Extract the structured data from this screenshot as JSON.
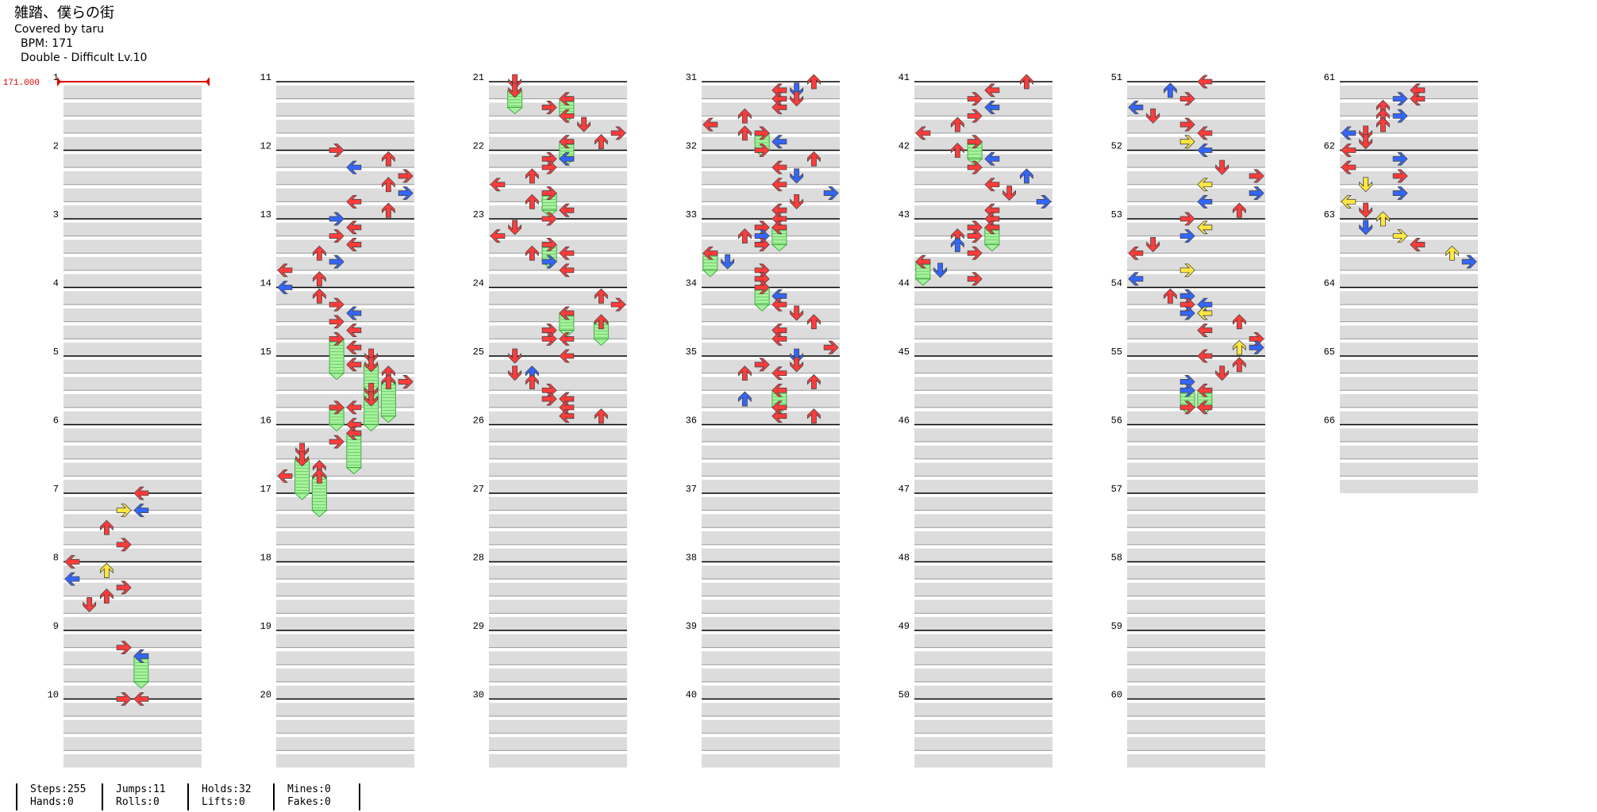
{
  "song": {
    "title": "雑踏、僕らの街",
    "artist": "Covered by taru",
    "bpm": "BPM: 171",
    "difficulty": "Double - Difficult Lv.10"
  },
  "bpm_marker": "171.000",
  "measure_count": 66,
  "stats": [
    {
      "line1": "Steps:255",
      "line2": "Hands:0"
    },
    {
      "line1": "Jumps:11",
      "line2": "Rolls:0"
    },
    {
      "line1": "Holds:32",
      "line2": "Lifts:0"
    },
    {
      "line1": "Mines:0",
      "line2": "Fakes:0"
    }
  ],
  "colors": {
    "lane_fill": "#dcdcdc",
    "beat_line": "#999999",
    "measure_line": "#000000",
    "arrow_red": "#ff3b3b",
    "arrow_blue": "#3366ff",
    "arrow_yellow": "#ffe640",
    "hold_body": "#a6f29c",
    "hold_stroke": "#3faa3f",
    "bpm_marker": "#dd0000"
  },
  "notes": [
    {
      "m": 7,
      "b": 0,
      "l": 4,
      "c": "r"
    },
    {
      "m": 7,
      "b": 1,
      "l": 3,
      "c": "y"
    },
    {
      "m": 7,
      "b": 1,
      "l": 4,
      "c": "b"
    },
    {
      "m": 7,
      "b": 2,
      "l": 2,
      "c": "r"
    },
    {
      "m": 7,
      "b": 3,
      "l": 3,
      "c": "r"
    },
    {
      "m": 8,
      "b": 0,
      "l": 0,
      "c": "r"
    },
    {
      "m": 8,
      "b": 0.5,
      "l": 2,
      "c": "y"
    },
    {
      "m": 8,
      "b": 1,
      "l": 0,
      "c": "b"
    },
    {
      "m": 8,
      "b": 1.5,
      "l": 3,
      "c": "r"
    },
    {
      "m": 8,
      "b": 2,
      "l": 2,
      "c": "r"
    },
    {
      "m": 8,
      "b": 2.5,
      "l": 1,
      "c": "r"
    },
    {
      "m": 9,
      "b": 1,
      "l": 3,
      "c": "r"
    },
    {
      "m": 9,
      "b": 1.5,
      "l": 4,
      "c": "b",
      "h": 1.5
    },
    {
      "m": 10,
      "b": 0,
      "l": 3,
      "c": "r"
    },
    {
      "m": 10,
      "b": 0,
      "l": 4,
      "c": "r"
    },
    {
      "m": 12,
      "b": 0,
      "l": 3,
      "c": "r"
    },
    {
      "m": 12,
      "b": 0.5,
      "l": 6,
      "c": "r"
    },
    {
      "m": 12,
      "b": 1,
      "l": 4,
      "c": "b"
    },
    {
      "m": 12,
      "b": 1.5,
      "l": 7,
      "c": "r"
    },
    {
      "m": 12,
      "b": 2,
      "l": 6,
      "c": "r"
    },
    {
      "m": 12,
      "b": 2.5,
      "l": 7,
      "c": "b"
    },
    {
      "m": 12,
      "b": 3,
      "l": 4,
      "c": "r"
    },
    {
      "m": 12,
      "b": 3.5,
      "l": 6,
      "c": "r"
    },
    {
      "m": 13,
      "b": 0,
      "l": 3,
      "c": "b"
    },
    {
      "m": 13,
      "b": 0.5,
      "l": 4,
      "c": "r"
    },
    {
      "m": 13,
      "b": 1,
      "l": 3,
      "c": "r"
    },
    {
      "m": 13,
      "b": 1.5,
      "l": 4,
      "c": "r"
    },
    {
      "m": 13,
      "b": 2,
      "l": 2,
      "c": "r"
    },
    {
      "m": 13,
      "b": 2.5,
      "l": 3,
      "c": "b"
    },
    {
      "m": 13,
      "b": 3,
      "l": 0,
      "c": "r"
    },
    {
      "m": 13,
      "b": 3.5,
      "l": 2,
      "c": "r"
    },
    {
      "m": 14,
      "b": 0,
      "l": 0,
      "c": "b"
    },
    {
      "m": 14,
      "b": 0.5,
      "l": 2,
      "c": "r"
    },
    {
      "m": 14,
      "b": 1,
      "l": 3,
      "c": "r"
    },
    {
      "m": 14,
      "b": 1.5,
      "l": 4,
      "c": "b"
    },
    {
      "m": 14,
      "b": 2,
      "l": 3,
      "c": "r"
    },
    {
      "m": 14,
      "b": 2.5,
      "l": 4,
      "c": "r"
    },
    {
      "m": 14,
      "b": 3,
      "l": 3,
      "c": "r",
      "h": 2
    },
    {
      "m": 14,
      "b": 3.5,
      "l": 4,
      "c": "r"
    },
    {
      "m": 15,
      "b": 0,
      "l": 5,
      "c": "r"
    },
    {
      "m": 15,
      "b": 0.5,
      "l": 4,
      "c": "r"
    },
    {
      "m": 15,
      "b": 0.5,
      "l": 5,
      "c": "r",
      "h": 2
    },
    {
      "m": 15,
      "b": 1,
      "l": 6,
      "c": "r"
    },
    {
      "m": 15,
      "b": 1.5,
      "l": 6,
      "c": "r",
      "h": 2
    },
    {
      "m": 15,
      "b": 1.5,
      "l": 7,
      "c": "r"
    },
    {
      "m": 15,
      "b": 2,
      "l": 5,
      "c": "r"
    },
    {
      "m": 15,
      "b": 2.5,
      "l": 5,
      "c": "r",
      "h": 1.5
    },
    {
      "m": 15,
      "b": 3,
      "l": 3,
      "c": "r",
      "h": 1
    },
    {
      "m": 15,
      "b": 3,
      "l": 4,
      "c": "r"
    },
    {
      "m": 16,
      "b": 0,
      "l": 4,
      "c": "r"
    },
    {
      "m": 16,
      "b": 0.5,
      "l": 4,
      "c": "r",
      "h": 2
    },
    {
      "m": 16,
      "b": 1,
      "l": 3,
      "c": "r"
    },
    {
      "m": 16,
      "b": 1.5,
      "l": 1,
      "c": "r"
    },
    {
      "m": 16,
      "b": 2,
      "l": 1,
      "c": "r",
      "h": 2
    },
    {
      "m": 16,
      "b": 2.5,
      "l": 2,
      "c": "r"
    },
    {
      "m": 16,
      "b": 3,
      "l": 0,
      "c": "r"
    },
    {
      "m": 16,
      "b": 3,
      "l": 2,
      "c": "r",
      "h": 2
    },
    {
      "m": 21,
      "b": 0,
      "l": 1,
      "c": "r"
    },
    {
      "m": 21,
      "b": 0.5,
      "l": 1,
      "c": "r",
      "h": 1
    },
    {
      "m": 21,
      "b": 1,
      "l": 4,
      "c": "r",
      "h": 1
    },
    {
      "m": 21,
      "b": 1.5,
      "l": 3,
      "c": "r"
    },
    {
      "m": 21,
      "b": 2,
      "l": 4,
      "c": "r"
    },
    {
      "m": 21,
      "b": 2.5,
      "l": 5,
      "c": "r"
    },
    {
      "m": 21,
      "b": 3,
      "l": 7,
      "c": "r"
    },
    {
      "m": 21,
      "b": 3.5,
      "l": 4,
      "c": "r",
      "h": 1
    },
    {
      "m": 21,
      "b": 3.5,
      "l": 6,
      "c": "r"
    },
    {
      "m": 22,
      "b": 0.5,
      "l": 3,
      "c": "r"
    },
    {
      "m": 22,
      "b": 0.5,
      "l": 4,
      "c": "b"
    },
    {
      "m": 22,
      "b": 1,
      "l": 3,
      "c": "r"
    },
    {
      "m": 22,
      "b": 1.5,
      "l": 2,
      "c": "r"
    },
    {
      "m": 22,
      "b": 2,
      "l": 0,
      "c": "r"
    },
    {
      "m": 22,
      "b": 2.5,
      "l": 3,
      "c": "r",
      "h": 1
    },
    {
      "m": 22,
      "b": 3,
      "l": 2,
      "c": "r"
    },
    {
      "m": 22,
      "b": 3.5,
      "l": 4,
      "c": "r"
    },
    {
      "m": 23,
      "b": 0,
      "l": 3,
      "c": "r"
    },
    {
      "m": 23,
      "b": 0.5,
      "l": 1,
      "c": "r"
    },
    {
      "m": 23,
      "b": 1,
      "l": 0,
      "c": "r"
    },
    {
      "m": 23,
      "b": 1.5,
      "l": 3,
      "c": "r",
      "h": 1
    },
    {
      "m": 23,
      "b": 2,
      "l": 2,
      "c": "r"
    },
    {
      "m": 23,
      "b": 2,
      "l": 4,
      "c": "r"
    },
    {
      "m": 23,
      "b": 2.5,
      "l": 3,
      "c": "b"
    },
    {
      "m": 23,
      "b": 3,
      "l": 4,
      "c": "r"
    },
    {
      "m": 24,
      "b": 0.5,
      "l": 6,
      "c": "r"
    },
    {
      "m": 24,
      "b": 1,
      "l": 7,
      "c": "r"
    },
    {
      "m": 24,
      "b": 1.5,
      "l": 4,
      "c": "r",
      "h": 1
    },
    {
      "m": 24,
      "b": 2,
      "l": 6,
      "c": "r",
      "h": 1
    },
    {
      "m": 24,
      "b": 2.5,
      "l": 3,
      "c": "r"
    },
    {
      "m": 24,
      "b": 3,
      "l": 3,
      "c": "r"
    },
    {
      "m": 24,
      "b": 3,
      "l": 4,
      "c": "r"
    },
    {
      "m": 25,
      "b": 0,
      "l": 1,
      "c": "r"
    },
    {
      "m": 25,
      "b": 0,
      "l": 4,
      "c": "r"
    },
    {
      "m": 25,
      "b": 1,
      "l": 1,
      "c": "r"
    },
    {
      "m": 25,
      "b": 1,
      "l": 2,
      "c": "b"
    },
    {
      "m": 25,
      "b": 1.5,
      "l": 2,
      "c": "r"
    },
    {
      "m": 25,
      "b": 2,
      "l": 3,
      "c": "r"
    },
    {
      "m": 25,
      "b": 2.5,
      "l": 3,
      "c": "r"
    },
    {
      "m": 25,
      "b": 2.5,
      "l": 4,
      "c": "r"
    },
    {
      "m": 25,
      "b": 3,
      "l": 4,
      "c": "r"
    },
    {
      "m": 25,
      "b": 3.5,
      "l": 4,
      "c": "r"
    },
    {
      "m": 25,
      "b": 3.5,
      "l": 6,
      "c": "r"
    },
    {
      "m": 31,
      "b": 0,
      "l": 6,
      "c": "r"
    },
    {
      "m": 31,
      "b": 0.5,
      "l": 4,
      "c": "r"
    },
    {
      "m": 31,
      "b": 0.5,
      "l": 5,
      "c": "b"
    },
    {
      "m": 31,
      "b": 1,
      "l": 4,
      "c": "r"
    },
    {
      "m": 31,
      "b": 1,
      "l": 5,
      "c": "r"
    },
    {
      "m": 31,
      "b": 1.5,
      "l": 4,
      "c": "r"
    },
    {
      "m": 31,
      "b": 2,
      "l": 2,
      "c": "r"
    },
    {
      "m": 31,
      "b": 2.5,
      "l": 0,
      "c": "r"
    },
    {
      "m": 31,
      "b": 3,
      "l": 2,
      "c": "r"
    },
    {
      "m": 31,
      "b": 3,
      "l": 3,
      "c": "r",
      "h": 1
    },
    {
      "m": 31,
      "b": 3.5,
      "l": 4,
      "c": "b"
    },
    {
      "m": 32,
      "b": 0,
      "l": 3,
      "c": "r"
    },
    {
      "m": 32,
      "b": 0.5,
      "l": 6,
      "c": "r"
    },
    {
      "m": 32,
      "b": 1,
      "l": 4,
      "c": "r"
    },
    {
      "m": 32,
      "b": 1.5,
      "l": 5,
      "c": "b"
    },
    {
      "m": 32,
      "b": 2,
      "l": 4,
      "c": "r"
    },
    {
      "m": 32,
      "b": 2.5,
      "l": 7,
      "c": "b"
    },
    {
      "m": 32,
      "b": 3,
      "l": 5,
      "c": "r"
    },
    {
      "m": 32,
      "b": 3.5,
      "l": 4,
      "c": "r"
    },
    {
      "m": 33,
      "b": 0,
      "l": 4,
      "c": "r"
    },
    {
      "m": 33,
      "b": 0.5,
      "l": 3,
      "c": "r"
    },
    {
      "m": 33,
      "b": 0.5,
      "l": 4,
      "c": "r",
      "h": 1
    },
    {
      "m": 33,
      "b": 1,
      "l": 2,
      "c": "r"
    },
    {
      "m": 33,
      "b": 1,
      "l": 3,
      "c": "b"
    },
    {
      "m": 33,
      "b": 1.5,
      "l": 3,
      "c": "r"
    },
    {
      "m": 33,
      "b": 2,
      "l": 0,
      "c": "r",
      "h": 1
    },
    {
      "m": 33,
      "b": 2.5,
      "l": 1,
      "c": "b"
    },
    {
      "m": 33,
      "b": 3,
      "l": 3,
      "c": "r"
    },
    {
      "m": 33,
      "b": 3.5,
      "l": 3,
      "c": "r"
    },
    {
      "m": 34,
      "b": 0,
      "l": 3,
      "c": "r",
      "h": 1
    },
    {
      "m": 34,
      "b": 0.5,
      "l": 4,
      "c": "b"
    },
    {
      "m": 34,
      "b": 1,
      "l": 4,
      "c": "r"
    },
    {
      "m": 34,
      "b": 1.5,
      "l": 5,
      "c": "r"
    },
    {
      "m": 34,
      "b": 2,
      "l": 6,
      "c": "r"
    },
    {
      "m": 34,
      "b": 2.5,
      "l": 4,
      "c": "r"
    },
    {
      "m": 34,
      "b": 3,
      "l": 4,
      "c": "r"
    },
    {
      "m": 34,
      "b": 3.5,
      "l": 7,
      "c": "r"
    },
    {
      "m": 35,
      "b": 0,
      "l": 5,
      "c": "b"
    },
    {
      "m": 35,
      "b": 0.5,
      "l": 3,
      "c": "r"
    },
    {
      "m": 35,
      "b": 0.5,
      "l": 5,
      "c": "r"
    },
    {
      "m": 35,
      "b": 1,
      "l": 2,
      "c": "r"
    },
    {
      "m": 35,
      "b": 1,
      "l": 4,
      "c": "r"
    },
    {
      "m": 35,
      "b": 1.5,
      "l": 6,
      "c": "r"
    },
    {
      "m": 35,
      "b": 2,
      "l": 4,
      "c": "r",
      "h": 1
    },
    {
      "m": 35,
      "b": 2.5,
      "l": 2,
      "c": "b"
    },
    {
      "m": 35,
      "b": 3,
      "l": 4,
      "c": "r"
    },
    {
      "m": 35,
      "b": 3.5,
      "l": 4,
      "c": "r"
    },
    {
      "m": 35,
      "b": 3.5,
      "l": 6,
      "c": "r"
    },
    {
      "m": 41,
      "b": 0,
      "l": 6,
      "c": "r"
    },
    {
      "m": 41,
      "b": 0.5,
      "l": 4,
      "c": "r"
    },
    {
      "m": 41,
      "b": 1,
      "l": 3,
      "c": "r"
    },
    {
      "m": 41,
      "b": 1.5,
      "l": 4,
      "c": "b"
    },
    {
      "m": 41,
      "b": 2,
      "l": 3,
      "c": "r"
    },
    {
      "m": 41,
      "b": 2.5,
      "l": 2,
      "c": "r"
    },
    {
      "m": 41,
      "b": 3,
      "l": 0,
      "c": "r"
    },
    {
      "m": 41,
      "b": 3.5,
      "l": 3,
      "c": "r",
      "h": 1
    },
    {
      "m": 42,
      "b": 0,
      "l": 2,
      "c": "r"
    },
    {
      "m": 42,
      "b": 0.5,
      "l": 4,
      "c": "b"
    },
    {
      "m": 42,
      "b": 1,
      "l": 3,
      "c": "r"
    },
    {
      "m": 42,
      "b": 1.5,
      "l": 6,
      "c": "b"
    },
    {
      "m": 42,
      "b": 2,
      "l": 4,
      "c": "r"
    },
    {
      "m": 42,
      "b": 2.5,
      "l": 5,
      "c": "r"
    },
    {
      "m": 42,
      "b": 3,
      "l": 7,
      "c": "b"
    },
    {
      "m": 42,
      "b": 3.5,
      "l": 4,
      "c": "r"
    },
    {
      "m": 43,
      "b": 0,
      "l": 4,
      "c": "r"
    },
    {
      "m": 43,
      "b": 0.5,
      "l": 3,
      "c": "r"
    },
    {
      "m": 43,
      "b": 0.5,
      "l": 4,
      "c": "r",
      "h": 1
    },
    {
      "m": 43,
      "b": 1,
      "l": 2,
      "c": "r"
    },
    {
      "m": 43,
      "b": 1,
      "l": 3,
      "c": "r"
    },
    {
      "m": 43,
      "b": 1.5,
      "l": 2,
      "c": "b"
    },
    {
      "m": 43,
      "b": 2,
      "l": 3,
      "c": "r"
    },
    {
      "m": 43,
      "b": 2.5,
      "l": 0,
      "c": "r",
      "h": 1
    },
    {
      "m": 43,
      "b": 3,
      "l": 1,
      "c": "b"
    },
    {
      "m": 43,
      "b": 3.5,
      "l": 3,
      "c": "r"
    },
    {
      "m": 51,
      "b": 0,
      "l": 4,
      "c": "r"
    },
    {
      "m": 51,
      "b": 0.5,
      "l": 2,
      "c": "b"
    },
    {
      "m": 51,
      "b": 1,
      "l": 3,
      "c": "r"
    },
    {
      "m": 51,
      "b": 1.5,
      "l": 0,
      "c": "b"
    },
    {
      "m": 51,
      "b": 2,
      "l": 1,
      "c": "r"
    },
    {
      "m": 51,
      "b": 2.5,
      "l": 3,
      "c": "r"
    },
    {
      "m": 51,
      "b": 3,
      "l": 4,
      "c": "r"
    },
    {
      "m": 51,
      "b": 3.5,
      "l": 3,
      "c": "y"
    },
    {
      "m": 52,
      "b": 0,
      "l": 4,
      "c": "b"
    },
    {
      "m": 52,
      "b": 1,
      "l": 5,
      "c": "r"
    },
    {
      "m": 52,
      "b": 1.5,
      "l": 7,
      "c": "r"
    },
    {
      "m": 52,
      "b": 2,
      "l": 4,
      "c": "y"
    },
    {
      "m": 52,
      "b": 2.5,
      "l": 7,
      "c": "b"
    },
    {
      "m": 52,
      "b": 3,
      "l": 4,
      "c": "b"
    },
    {
      "m": 52,
      "b": 3.5,
      "l": 6,
      "c": "r"
    },
    {
      "m": 53,
      "b": 0,
      "l": 3,
      "c": "r"
    },
    {
      "m": 53,
      "b": 0.5,
      "l": 4,
      "c": "y"
    },
    {
      "m": 53,
      "b": 1,
      "l": 3,
      "c": "b"
    },
    {
      "m": 53,
      "b": 1.5,
      "l": 1,
      "c": "r"
    },
    {
      "m": 53,
      "b": 2,
      "l": 0,
      "c": "r"
    },
    {
      "m": 53,
      "b": 3,
      "l": 3,
      "c": "y"
    },
    {
      "m": 53,
      "b": 3.5,
      "l": 0,
      "c": "b"
    },
    {
      "m": 54,
      "b": 0.5,
      "l": 2,
      "c": "r"
    },
    {
      "m": 54,
      "b": 0.5,
      "l": 3,
      "c": "b"
    },
    {
      "m": 54,
      "b": 1,
      "l": 3,
      "c": "r"
    },
    {
      "m": 54,
      "b": 1,
      "l": 4,
      "c": "b"
    },
    {
      "m": 54,
      "b": 1.5,
      "l": 4,
      "c": "y"
    },
    {
      "m": 54,
      "b": 1.5,
      "l": 3,
      "c": "b"
    },
    {
      "m": 54,
      "b": 2,
      "l": 6,
      "c": "r"
    },
    {
      "m": 54,
      "b": 2.5,
      "l": 4,
      "c": "r"
    },
    {
      "m": 54,
      "b": 3,
      "l": 7,
      "c": "r"
    },
    {
      "m": 54,
      "b": 3.5,
      "l": 6,
      "c": "y"
    },
    {
      "m": 54,
      "b": 3.5,
      "l": 7,
      "c": "b"
    },
    {
      "m": 55,
      "b": 0,
      "l": 4,
      "c": "r"
    },
    {
      "m": 55,
      "b": 0.5,
      "l": 6,
      "c": "r"
    },
    {
      "m": 55,
      "b": 1,
      "l": 5,
      "c": "r"
    },
    {
      "m": 55,
      "b": 1.5,
      "l": 3,
      "c": "b"
    },
    {
      "m": 55,
      "b": 2,
      "l": 3,
      "c": "b",
      "h": 1
    },
    {
      "m": 55,
      "b": 2,
      "l": 4,
      "c": "r",
      "h": 1
    },
    {
      "m": 55,
      "b": 3,
      "l": 3,
      "c": "r"
    },
    {
      "m": 55,
      "b": 3,
      "l": 4,
      "c": "r"
    },
    {
      "m": 61,
      "b": 0.5,
      "l": 4,
      "c": "r"
    },
    {
      "m": 61,
      "b": 1,
      "l": 3,
      "c": "b"
    },
    {
      "m": 61,
      "b": 1,
      "l": 4,
      "c": "r"
    },
    {
      "m": 61,
      "b": 1.5,
      "l": 2,
      "c": "r"
    },
    {
      "m": 61,
      "b": 2,
      "l": 2,
      "c": "r"
    },
    {
      "m": 61,
      "b": 2,
      "l": 3,
      "c": "b"
    },
    {
      "m": 61,
      "b": 2.5,
      "l": 2,
      "c": "r"
    },
    {
      "m": 61,
      "b": 3,
      "l": 1,
      "c": "r"
    },
    {
      "m": 61,
      "b": 3,
      "l": 0,
      "c": "b"
    },
    {
      "m": 61,
      "b": 3.5,
      "l": 1,
      "c": "r"
    },
    {
      "m": 62,
      "b": 0,
      "l": 0,
      "c": "r"
    },
    {
      "m": 62,
      "b": 0.5,
      "l": 3,
      "c": "b"
    },
    {
      "m": 62,
      "b": 1,
      "l": 0,
      "c": "r"
    },
    {
      "m": 62,
      "b": 1.5,
      "l": 3,
      "c": "r"
    },
    {
      "m": 62,
      "b": 2,
      "l": 1,
      "c": "y"
    },
    {
      "m": 62,
      "b": 2.5,
      "l": 3,
      "c": "b"
    },
    {
      "m": 62,
      "b": 3,
      "l": 0,
      "c": "y"
    },
    {
      "m": 62,
      "b": 3.5,
      "l": 1,
      "c": "r"
    },
    {
      "m": 63,
      "b": 0,
      "l": 2,
      "c": "y"
    },
    {
      "m": 63,
      "b": 0.5,
      "l": 1,
      "c": "b"
    },
    {
      "m": 63,
      "b": 1,
      "l": 3,
      "c": "y"
    },
    {
      "m": 63,
      "b": 1.5,
      "l": 4,
      "c": "r"
    },
    {
      "m": 63,
      "b": 2,
      "l": 6,
      "c": "y"
    },
    {
      "m": 63,
      "b": 2.5,
      "l": 7,
      "c": "b"
    }
  ]
}
